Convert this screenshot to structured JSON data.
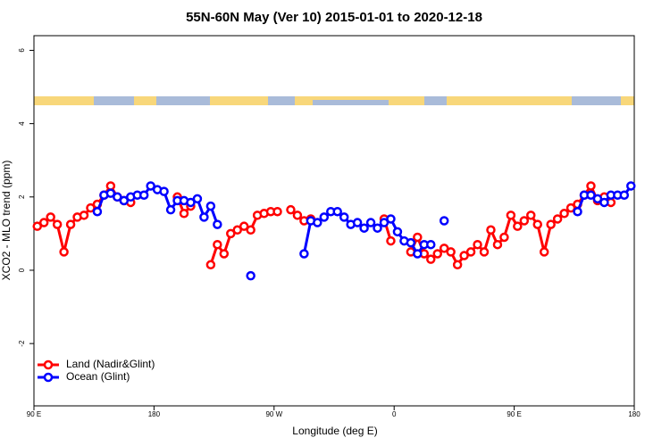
{
  "chart_data": {
    "type": "line",
    "title": "55N-60N May (Ver 10)   2015-01-01 to 2020-12-18",
    "x_label": "Longitude (deg E)",
    "y_label": "XCO2 - MLO trend (ppm)",
    "x": [
      92.5,
      97.5,
      102.5,
      107.5,
      112.5,
      117.5,
      122.5,
      127.5,
      132.5,
      137.5,
      142.5,
      147.5,
      152.5,
      157.5,
      162.5,
      167.5,
      172.5,
      177.5,
      182.5,
      187.5,
      192.5,
      197.5,
      202.5,
      207.5,
      212.5,
      217.5,
      222.5,
      227.5,
      232.5,
      237.5,
      242.5,
      247.5,
      252.5,
      257.5,
      262.5,
      267.5,
      272.5,
      277.5,
      282.5,
      287.5,
      292.5,
      297.5,
      302.5,
      307.5,
      312.5,
      317.5,
      322.5,
      327.5,
      332.5,
      337.5,
      342.5,
      347.5,
      352.5,
      357.5,
      362.5,
      367.5,
      372.5,
      377.5,
      382.5,
      387.5,
      392.5,
      397.5,
      402.5,
      407.5,
      412.5,
      417.5,
      422.5,
      427.5,
      432.5,
      437.5,
      442.5,
      447.5,
      452.5,
      457.5,
      462.5,
      467.5,
      472.5,
      477.5,
      482.5,
      487.5,
      492.5,
      497.5,
      502.5,
      507.5,
      512.5,
      517.5,
      522.5,
      527.5,
      532.5,
      537.5
    ],
    "series": [
      {
        "name": "Land (Nadir&Glint)",
        "color": "#ff0000",
        "values": [
          1.2,
          1.3,
          1.45,
          1.25,
          0.5,
          1.25,
          1.45,
          1.5,
          1.7,
          1.8,
          2.05,
          2.3,
          2.0,
          1.9,
          1.85,
          null,
          null,
          null,
          null,
          null,
          null,
          2.0,
          1.55,
          1.75,
          null,
          null,
          0.15,
          0.7,
          0.45,
          1.0,
          1.1,
          1.2,
          1.1,
          1.5,
          1.55,
          1.6,
          1.6,
          null,
          1.65,
          1.5,
          1.35,
          1.4,
          null,
          null,
          null,
          null,
          null,
          null,
          null,
          null,
          null,
          null,
          1.4,
          0.8,
          null,
          null,
          0.5,
          0.9,
          0.45,
          0.3,
          0.45,
          0.6,
          0.5,
          0.15,
          0.4,
          0.5,
          0.7,
          0.5,
          1.1,
          0.7,
          0.9,
          1.5,
          1.2,
          1.35,
          1.5,
          1.25,
          0.5,
          1.25,
          1.4,
          1.55,
          1.7,
          1.8,
          2.05,
          2.3,
          1.9,
          2.0,
          1.85,
          null,
          null,
          null
        ]
      },
      {
        "name": "Ocean (Glint)",
        "color": "#0000ff",
        "values": [
          null,
          null,
          null,
          null,
          null,
          null,
          null,
          null,
          null,
          1.6,
          2.05,
          2.1,
          2.0,
          1.9,
          2.0,
          2.05,
          2.05,
          2.3,
          2.2,
          2.15,
          1.65,
          1.9,
          1.9,
          1.85,
          1.95,
          1.45,
          1.75,
          1.25,
          null,
          null,
          null,
          null,
          -0.15,
          null,
          null,
          null,
          null,
          null,
          null,
          null,
          0.45,
          1.35,
          1.3,
          1.45,
          1.6,
          1.6,
          1.45,
          1.25,
          1.3,
          1.15,
          1.3,
          1.15,
          1.3,
          1.4,
          1.05,
          0.8,
          0.75,
          0.45,
          0.7,
          0.7,
          null,
          1.35,
          null,
          null,
          null,
          null,
          null,
          null,
          null,
          null,
          null,
          null,
          null,
          null,
          null,
          null,
          null,
          null,
          null,
          null,
          null,
          1.6,
          2.05,
          2.05,
          1.95,
          1.85,
          2.05,
          2.05,
          2.05,
          2.3
        ]
      }
    ],
    "xlim": [
      90,
      540
    ],
    "xticks": [
      {
        "value": 90,
        "label": "90 E"
      },
      180,
      {
        "value": 270,
        "label": "90 W"
      },
      {
        "value": 360,
        "label": "0"
      },
      {
        "value": 450,
        "label": "90 E"
      },
      {
        "value": 540,
        "label": "180"
      }
    ],
    "ylim": [
      -3.7,
      6.4
    ],
    "yticks": [
      -2,
      0,
      2,
      4,
      6
    ],
    "legend": "bottomleft"
  }
}
